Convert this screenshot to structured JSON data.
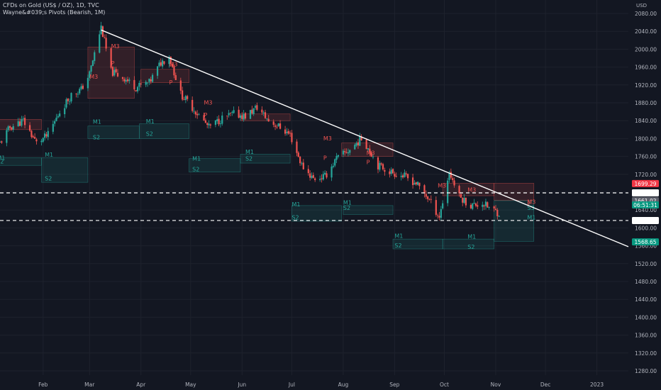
{
  "header": {
    "title": "CFDs on Gold (US$ / OZ), 1D, TVC",
    "indicator": "Wayne&#039;s Pivots (Bearish, 1M)",
    "currency": "USD"
  },
  "colors": {
    "up": "#26a69a",
    "down": "#ef5350",
    "trendline": "#ffffff",
    "grid": "#1e222d",
    "background": "#131722",
    "badge_red": "#f23645",
    "badge_gray": "#5d606b",
    "badge_teal": "#089981"
  },
  "chart_data": {
    "type": "candlestick",
    "title": "CFDs on Gold (US$ / OZ), 1D, TVC",
    "ylim": [
      1280,
      2080
    ],
    "y_ticks": [
      2080,
      2040,
      2000,
      1960,
      1920,
      1880,
      1840,
      1800,
      1760,
      1720,
      1680,
      1640,
      1600,
      1560,
      1520,
      1480,
      1440,
      1400,
      1360,
      1320,
      1280
    ],
    "y_tick_labels": [
      "2080.00",
      "2040.00",
      "2000.00",
      "1960.00",
      "1920.00",
      "1880.00",
      "1840.00",
      "1800.00",
      "1760.00",
      "1720.00",
      "1680.00",
      "1640.00",
      "1600.00",
      "1560.00",
      "1520.00",
      "1480.00",
      "1440.00",
      "1400.00",
      "1360.00",
      "1320.00",
      "1280.00"
    ],
    "x_labels": [
      {
        "label": "Feb",
        "date": "2022-02-01"
      },
      {
        "label": "Mar",
        "date": "2022-03-01"
      },
      {
        "label": "Apr",
        "date": "2022-04-01"
      },
      {
        "label": "May",
        "date": "2022-05-01"
      },
      {
        "label": "Jun",
        "date": "2022-06-01"
      },
      {
        "label": "Jul",
        "date": "2022-07-01"
      },
      {
        "label": "Aug",
        "date": "2022-08-01"
      },
      {
        "label": "Sep",
        "date": "2022-09-01"
      },
      {
        "label": "Oct",
        "date": "2022-10-01"
      },
      {
        "label": "Nov",
        "date": "2022-11-01"
      },
      {
        "label": "Dec",
        "date": "2022-12-01"
      },
      {
        "label": "2023",
        "date": "2023-01-01"
      }
    ],
    "x_range": [
      "2022-01-06",
      "2023-01-20"
    ],
    "price_path": [
      [
        "2022-01-06",
        1790
      ],
      [
        "2022-01-12",
        1825
      ],
      [
        "2022-01-20",
        1840
      ],
      [
        "2022-01-28",
        1790
      ],
      [
        "2022-02-04",
        1808
      ],
      [
        "2022-02-11",
        1860
      ],
      [
        "2022-02-18",
        1898
      ],
      [
        "2022-02-24",
        1910
      ],
      [
        "2022-03-01",
        1945
      ],
      [
        "2022-03-08",
        2050
      ],
      [
        "2022-03-14",
        1950
      ],
      [
        "2022-03-22",
        1935
      ],
      [
        "2022-03-29",
        1915
      ],
      [
        "2022-04-06",
        1925
      ],
      [
        "2022-04-13",
        1970
      ],
      [
        "2022-04-18",
        1985
      ],
      [
        "2022-04-25",
        1900
      ],
      [
        "2022-05-03",
        1865
      ],
      [
        "2022-05-12",
        1825
      ],
      [
        "2022-05-20",
        1845
      ],
      [
        "2022-05-27",
        1855
      ],
      [
        "2022-06-03",
        1850
      ],
      [
        "2022-06-10",
        1870
      ],
      [
        "2022-06-17",
        1840
      ],
      [
        "2022-06-24",
        1825
      ],
      [
        "2022-06-30",
        1808
      ],
      [
        "2022-07-07",
        1740
      ],
      [
        "2022-07-14",
        1710
      ],
      [
        "2022-07-21",
        1715
      ],
      [
        "2022-07-28",
        1755
      ],
      [
        "2022-08-05",
        1775
      ],
      [
        "2022-08-12",
        1800
      ],
      [
        "2022-08-16",
        1780
      ],
      [
        "2022-08-22",
        1740
      ],
      [
        "2022-08-30",
        1725
      ],
      [
        "2022-09-07",
        1715
      ],
      [
        "2022-09-14",
        1700
      ],
      [
        "2022-09-21",
        1668
      ],
      [
        "2022-09-28",
        1625
      ],
      [
        "2022-10-04",
        1725
      ],
      [
        "2022-10-10",
        1670
      ],
      [
        "2022-10-17",
        1650
      ],
      [
        "2022-10-24",
        1655
      ],
      [
        "2022-10-28",
        1645
      ],
      [
        "2022-11-03",
        1633
      ]
    ],
    "trendline": {
      "start": [
        "2022-03-08",
        2043
      ],
      "end": [
        "2023-01-20",
        1558
      ]
    },
    "price_lines": [
      {
        "price": 1678.38,
        "style": "dashed"
      },
      {
        "price": 1616.57,
        "style": "dashed"
      }
    ],
    "price_badges": [
      {
        "label": "1699.29",
        "price": 1699.29,
        "color": "#f23645"
      },
      {
        "label": "1678.38",
        "price": 1678.38,
        "color": "#ffffff"
      },
      {
        "label": "1661.02",
        "price": 1661.02,
        "color": "#5d606b"
      },
      {
        "label": "06:51:31",
        "price": 1651.5,
        "color": "#089981"
      },
      {
        "label": "1616.57",
        "price": 1616.57,
        "color": "#ffffff"
      },
      {
        "label": "1568.65",
        "price": 1568.65,
        "color": "#089981"
      }
    ],
    "pivot_boxes": [
      {
        "kind": "resistance",
        "from": "2022-01-01",
        "to": "2022-01-31",
        "top": 1843,
        "bottom": 1820
      },
      {
        "kind": "resistance",
        "from": "2022-02-28",
        "to": "2022-03-28",
        "top": 2005,
        "bottom": 1890
      },
      {
        "kind": "resistance",
        "from": "2022-04-01",
        "to": "2022-04-30",
        "top": 1955,
        "bottom": 1925
      },
      {
        "kind": "resistance",
        "from": "2022-05-31",
        "to": "2022-06-30",
        "top": 1855,
        "bottom": 1840
      },
      {
        "kind": "resistance",
        "from": "2022-07-31",
        "to": "2022-08-31",
        "top": 1790,
        "bottom": 1760
      },
      {
        "kind": "resistance",
        "from": "2022-09-30",
        "to": "2022-10-31",
        "top": 1700,
        "bottom": 1672
      },
      {
        "kind": "resistance",
        "from": "2022-10-31",
        "to": "2022-11-24",
        "top": 1700,
        "bottom": 1662
      },
      {
        "kind": "support",
        "from": "2022-01-01",
        "to": "2022-01-31",
        "top": 1757,
        "bottom": 1740
      },
      {
        "kind": "support",
        "from": "2022-01-31",
        "to": "2022-02-28",
        "top": 1757,
        "bottom": 1702
      },
      {
        "kind": "support",
        "from": "2022-02-28",
        "to": "2022-03-31",
        "top": 1828,
        "bottom": 1800
      },
      {
        "kind": "support",
        "from": "2022-03-31",
        "to": "2022-04-30",
        "top": 1833,
        "bottom": 1800
      },
      {
        "kind": "support",
        "from": "2022-04-30",
        "to": "2022-05-31",
        "top": 1755,
        "bottom": 1725
      },
      {
        "kind": "support",
        "from": "2022-05-31",
        "to": "2022-06-30",
        "top": 1765,
        "bottom": 1745
      },
      {
        "kind": "support",
        "from": "2022-07-01",
        "to": "2022-07-31",
        "top": 1650,
        "bottom": 1615
      },
      {
        "kind": "support",
        "from": "2022-08-01",
        "to": "2022-08-31",
        "top": 1650,
        "bottom": 1630
      },
      {
        "kind": "support",
        "from": "2022-08-31",
        "to": "2022-09-30",
        "top": 1575,
        "bottom": 1553
      },
      {
        "kind": "support",
        "from": "2022-09-30",
        "to": "2022-10-31",
        "top": 1575,
        "bottom": 1553
      },
      {
        "kind": "support",
        "from": "2022-10-31",
        "to": "2022-11-24",
        "top": 1661,
        "bottom": 1570
      }
    ],
    "pivot_labels": [
      {
        "text": "M3",
        "date": "2022-03-01",
        "price": 1934,
        "kind": "resistance"
      },
      {
        "text": "M3",
        "date": "2022-03-14",
        "price": 2002,
        "kind": "resistance"
      },
      {
        "text": "P",
        "date": "2022-03-14",
        "price": 1964,
        "kind": "resistance"
      },
      {
        "text": "P",
        "date": "2022-04-18",
        "price": 1921,
        "kind": "resistance"
      },
      {
        "text": "M3",
        "date": "2022-04-18",
        "price": 1962,
        "kind": "resistance"
      },
      {
        "text": "M3",
        "date": "2022-05-09",
        "price": 1876,
        "kind": "resistance"
      },
      {
        "text": "P",
        "date": "2022-05-09",
        "price": 1848,
        "kind": "resistance"
      },
      {
        "text": "M3",
        "date": "2022-07-20",
        "price": 1796,
        "kind": "resistance"
      },
      {
        "text": "P",
        "date": "2022-07-20",
        "price": 1752,
        "kind": "resistance"
      },
      {
        "text": "M3",
        "date": "2022-08-15",
        "price": 1763,
        "kind": "resistance"
      },
      {
        "text": "P",
        "date": "2022-08-15",
        "price": 1743,
        "kind": "resistance"
      },
      {
        "text": "M3",
        "date": "2022-09-27",
        "price": 1690,
        "kind": "resistance"
      },
      {
        "text": "M3",
        "date": "2022-10-15",
        "price": 1681,
        "kind": "resistance"
      },
      {
        "text": "P",
        "date": "2022-11-20",
        "price": 1649,
        "kind": "resistance"
      },
      {
        "text": "M3",
        "date": "2022-11-20",
        "price": 1654,
        "kind": "resistance"
      },
      {
        "text": "M1",
        "date": "2022-01-04",
        "price": 1752,
        "kind": "support"
      },
      {
        "text": "S2",
        "date": "2022-01-04",
        "price": 1744,
        "kind": "support"
      },
      {
        "text": "M1",
        "date": "2022-02-02",
        "price": 1759,
        "kind": "support"
      },
      {
        "text": "S2",
        "date": "2022-02-02",
        "price": 1706,
        "kind": "support"
      },
      {
        "text": "M1",
        "date": "2022-03-03",
        "price": 1833,
        "kind": "support"
      },
      {
        "text": "S2",
        "date": "2022-03-03",
        "price": 1798,
        "kind": "support"
      },
      {
        "text": "M1",
        "date": "2022-04-04",
        "price": 1834,
        "kind": "support"
      },
      {
        "text": "S2",
        "date": "2022-04-04",
        "price": 1806,
        "kind": "support"
      },
      {
        "text": "M1",
        "date": "2022-05-02",
        "price": 1751,
        "kind": "support"
      },
      {
        "text": "S2",
        "date": "2022-05-02",
        "price": 1727,
        "kind": "support"
      },
      {
        "text": "M1",
        "date": "2022-06-03",
        "price": 1766,
        "kind": "support"
      },
      {
        "text": "S2",
        "date": "2022-06-03",
        "price": 1751,
        "kind": "support"
      },
      {
        "text": "M1",
        "date": "2022-07-01",
        "price": 1648,
        "kind": "support"
      },
      {
        "text": "S2",
        "date": "2022-07-01",
        "price": 1619,
        "kind": "support"
      },
      {
        "text": "M1",
        "date": "2022-08-01",
        "price": 1652,
        "kind": "support"
      },
      {
        "text": "S2",
        "date": "2022-08-01",
        "price": 1640,
        "kind": "support"
      },
      {
        "text": "M1",
        "date": "2022-09-01",
        "price": 1578,
        "kind": "support"
      },
      {
        "text": "S2",
        "date": "2022-09-01",
        "price": 1556,
        "kind": "support"
      },
      {
        "text": "M1",
        "date": "2022-10-15",
        "price": 1576,
        "kind": "support"
      },
      {
        "text": "S2",
        "date": "2022-10-15",
        "price": 1553,
        "kind": "support"
      },
      {
        "text": "M1",
        "date": "2022-11-20",
        "price": 1619,
        "kind": "support"
      },
      {
        "text": "S3",
        "date": "2022-11-20",
        "price": 1640,
        "kind": "support"
      }
    ],
    "legend": "top-left",
    "grid": true
  }
}
